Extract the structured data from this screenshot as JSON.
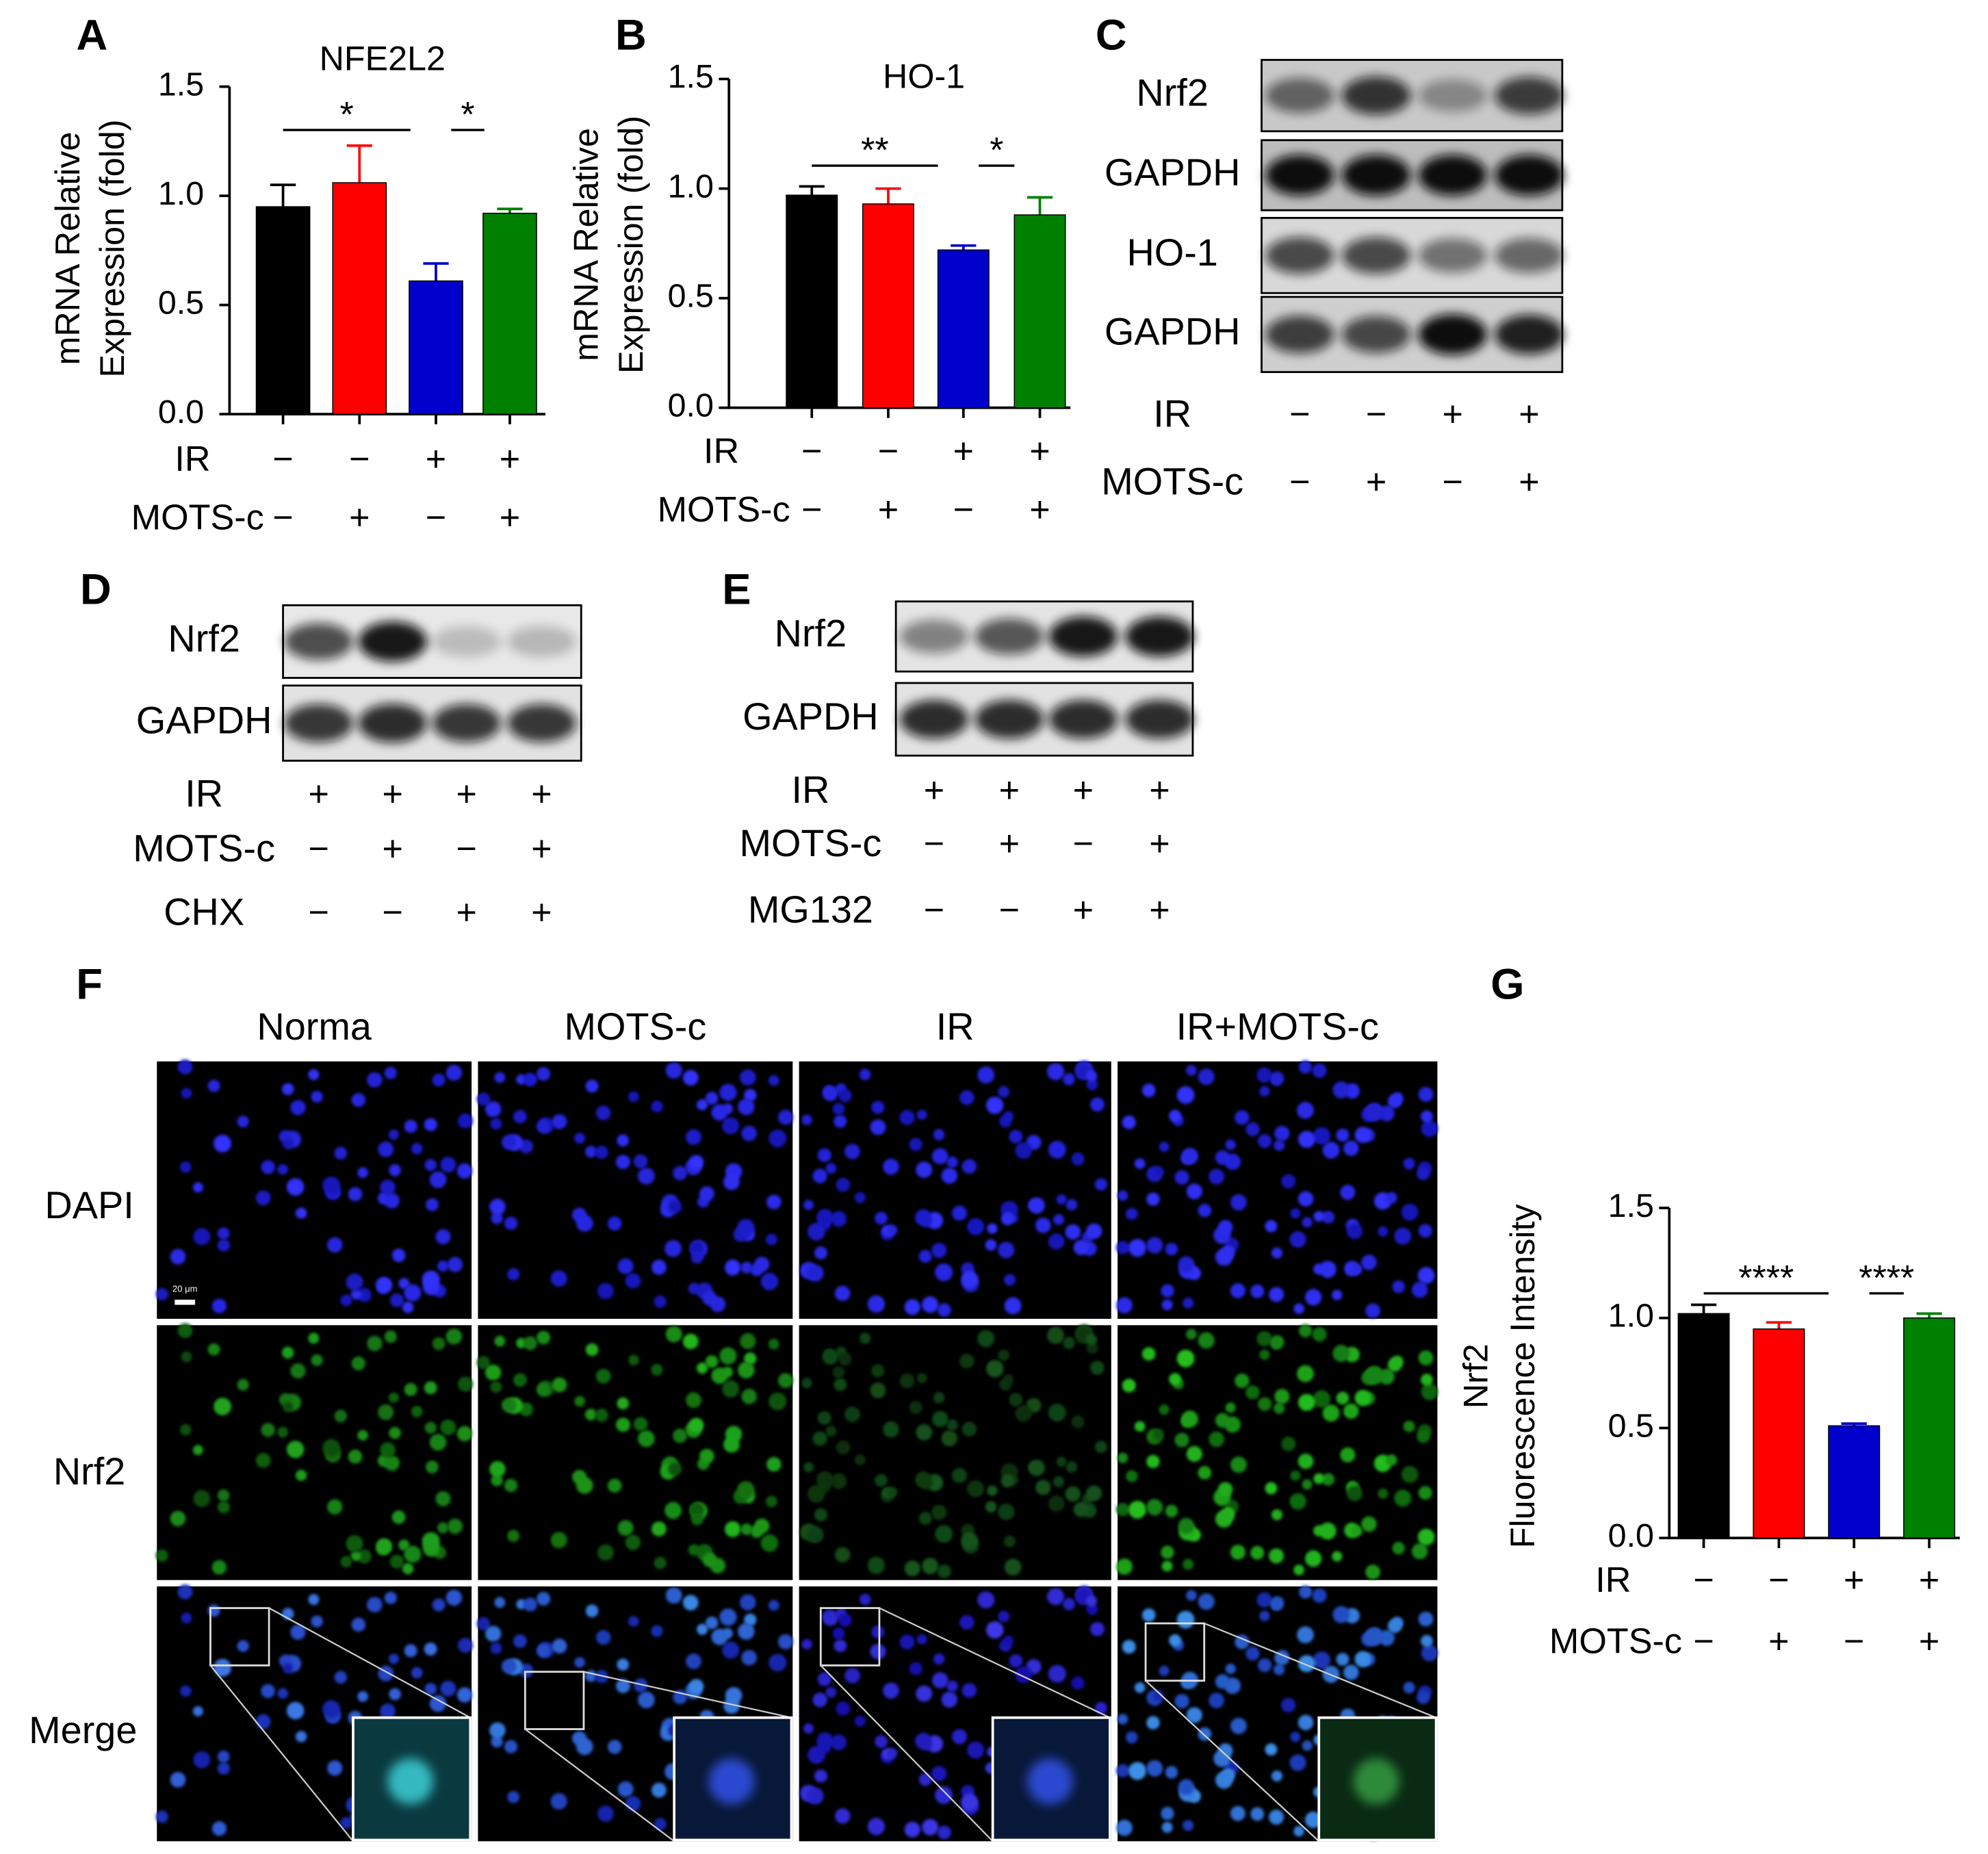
{
  "chart_data": [
    {
      "type": "bar",
      "panel_label": "A",
      "title": "NFE2L2",
      "y_label": [
        "mRNA Relative",
        "Expression (fold)"
      ],
      "values": [
        0.95,
        1.06,
        0.61,
        0.92
      ],
      "errors": [
        0.1,
        0.17,
        0.08,
        0.02
      ],
      "colors": [
        "#000000",
        "#ff0000",
        "#0000cc",
        "#008000"
      ],
      "ylim": [
        0,
        1.5
      ],
      "yticks": [
        {
          "value": 0,
          "label": "0.0"
        },
        0.5,
        {
          "value": 1,
          "label": "1.0"
        },
        1.5
      ],
      "significance": [
        {
          "from": 0,
          "to": 2,
          "label": "*"
        },
        {
          "from": 2,
          "to": 3,
          "label": "*"
        }
      ],
      "conditions": [
        {
          "name": "IR",
          "marks": [
            "−",
            "−",
            "+",
            "+"
          ]
        },
        {
          "name": "MOTS-c",
          "marks": [
            "−",
            "+",
            "−",
            "+"
          ]
        }
      ]
    },
    {
      "type": "bar",
      "panel_label": "B",
      "title": "HO-1",
      "y_label": [
        "mRNA Relative",
        "Expression (fold)"
      ],
      "values": [
        0.97,
        0.93,
        0.72,
        0.88
      ],
      "errors": [
        0.04,
        0.07,
        0.02,
        0.08
      ],
      "colors": [
        "#000000",
        "#ff0000",
        "#0000cc",
        "#008000"
      ],
      "ylim": [
        0,
        1.5
      ],
      "yticks": [
        {
          "value": 0,
          "label": "0.0"
        },
        0.5,
        {
          "value": 1,
          "label": "1.0"
        },
        1.5
      ],
      "significance": [
        {
          "from": 0,
          "to": 2,
          "label": "**"
        },
        {
          "from": 2,
          "to": 3,
          "label": "*"
        }
      ],
      "conditions": [
        {
          "name": "IR",
          "marks": [
            "−",
            "−",
            "+",
            "+"
          ]
        },
        {
          "name": "MOTS-c",
          "marks": [
            "−",
            "+",
            "−",
            "+"
          ]
        }
      ]
    },
    {
      "type": "bar",
      "panel_label": "G",
      "y_label": [
        "Nrf2",
        "Fluorescence Intensity"
      ],
      "values": [
        1.02,
        0.95,
        0.51,
        1.0
      ],
      "errors": [
        0.04,
        0.03,
        0.01,
        0.02
      ],
      "colors": [
        "#000000",
        "#ff0000",
        "#0000cc",
        "#008000"
      ],
      "ylim": [
        0,
        1.5
      ],
      "yticks": [
        {
          "value": 0,
          "label": "0.0"
        },
        0.5,
        {
          "value": 1,
          "label": "1.0"
        },
        1.5
      ],
      "significance": [
        {
          "from": 0,
          "to": 2,
          "label": "****"
        },
        {
          "from": 2,
          "to": 3,
          "label": "****"
        }
      ],
      "conditions": [
        {
          "name": "IR",
          "marks": [
            "−",
            "−",
            "+",
            "+"
          ]
        },
        {
          "name": "MOTS-c",
          "marks": [
            "−",
            "+",
            "−",
            "+"
          ]
        }
      ]
    }
  ],
  "blots": [
    {
      "panel_label": "C",
      "rows": [
        "Nrf2",
        "GAPDH",
        "HO-1",
        "GAPDH"
      ],
      "conditions": [
        {
          "name": "IR",
          "marks": [
            "−",
            "−",
            "+",
            "+"
          ]
        },
        {
          "name": "MOTS-c",
          "marks": [
            "−",
            "+",
            "−",
            "+"
          ]
        }
      ]
    },
    {
      "panel_label": "D",
      "rows": [
        "Nrf2",
        "GAPDH"
      ],
      "conditions": [
        {
          "name": "IR",
          "marks": [
            "+",
            "+",
            "+",
            "+"
          ]
        },
        {
          "name": "MOTS-c",
          "marks": [
            "−",
            "+",
            "−",
            "+"
          ]
        },
        {
          "name": "CHX",
          "marks": [
            "−",
            "−",
            "+",
            "+"
          ]
        }
      ]
    },
    {
      "panel_label": "E",
      "rows": [
        "Nrf2",
        "GAPDH"
      ],
      "conditions": [
        {
          "name": "IR",
          "marks": [
            "+",
            "+",
            "+",
            "+"
          ]
        },
        {
          "name": "MOTS-c",
          "marks": [
            "−",
            "+",
            "−",
            "+"
          ]
        },
        {
          "name": "MG132",
          "marks": [
            "−",
            "−",
            "+",
            "+"
          ]
        }
      ]
    }
  ],
  "microscopy": {
    "panel_label": "F",
    "columns": [
      "Norma",
      "MOTS-c",
      "IR",
      "IR+MOTS-c"
    ],
    "rows": [
      "DAPI",
      "Nrf2",
      "Merge"
    ],
    "scale_bar": "20 μm"
  }
}
